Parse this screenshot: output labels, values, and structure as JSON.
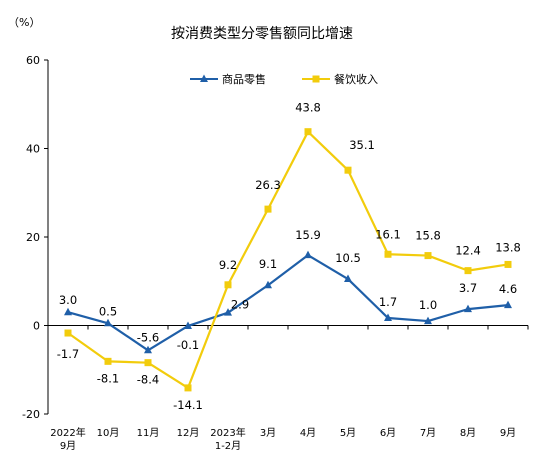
{
  "chart_data": {
    "type": "line",
    "title": "按消费类型分零售额同比增速",
    "ylabel": "（%）",
    "ylim": [
      -20,
      60
    ],
    "yticks": [
      -20,
      0,
      20,
      40,
      60
    ],
    "categories": [
      [
        "2022年",
        "9月"
      ],
      [
        "10月"
      ],
      [
        "11月"
      ],
      [
        "12月"
      ],
      [
        "2023年",
        "1-2月"
      ],
      [
        "3月"
      ],
      [
        "4月"
      ],
      [
        "5月"
      ],
      [
        "6月"
      ],
      [
        "7月"
      ],
      [
        "8月"
      ],
      [
        "9月"
      ]
    ],
    "series": [
      {
        "name": "商品零售",
        "color": "#1F5FA8",
        "marker": "triangle",
        "values": [
          3.0,
          0.5,
          -5.6,
          -0.1,
          2.9,
          9.1,
          15.9,
          10.5,
          1.7,
          1.0,
          3.7,
          4.6
        ]
      },
      {
        "name": "餐饮收入",
        "color": "#F2CC0C",
        "marker": "square",
        "values": [
          -1.7,
          -8.1,
          -8.4,
          -14.1,
          9.2,
          26.3,
          43.8,
          35.1,
          16.1,
          15.8,
          12.4,
          13.8
        ]
      }
    ],
    "labels": {
      "商品零售": [
        "3.0",
        "0.5",
        "-5.6",
        "-0.1",
        "2.9",
        "9.1",
        "15.9",
        "10.5",
        "1.7",
        "1.0",
        "3.7",
        "4.6"
      ],
      "餐饮收入": [
        "-1.7",
        "-8.1",
        "-8.4",
        "-14.1",
        "9.2",
        "26.3",
        "43.8",
        "35.1",
        "16.1",
        "15.8",
        "12.4",
        "13.8"
      ]
    },
    "legend_position": "top-center",
    "grid": false
  }
}
